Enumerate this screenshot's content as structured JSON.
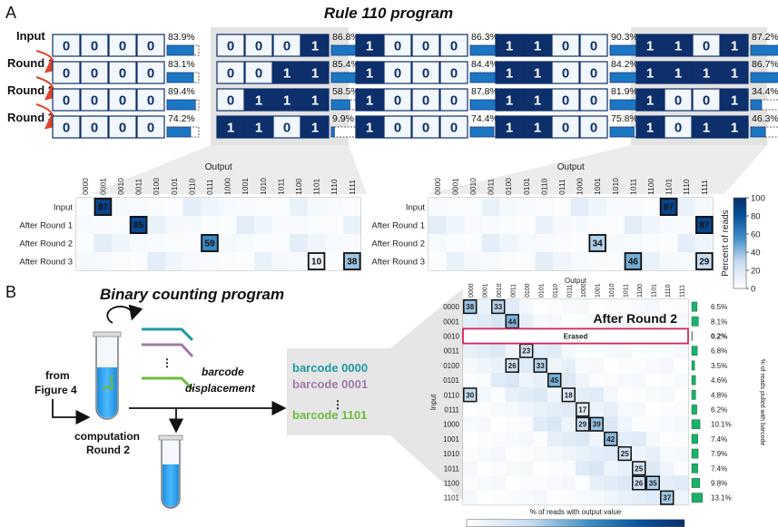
{
  "panel_a": {
    "letter": "A",
    "title": "Rule 110 program",
    "row_labels": [
      "Input",
      "Round 1",
      "Round 2",
      "Round 3"
    ],
    "programs": [
      {
        "rows": [
          {
            "bits": "0000",
            "pct": "83.9%",
            "v": 83.9
          },
          {
            "bits": "0000",
            "pct": "83.1%",
            "v": 83.1
          },
          {
            "bits": "0000",
            "pct": "89.4%",
            "v": 89.4
          },
          {
            "bits": "0000",
            "pct": "74.2%",
            "v": 74.2
          }
        ]
      },
      {
        "rows": [
          {
            "bits": "0001",
            "pct": "86.8%",
            "v": 86.8
          },
          {
            "bits": "0011",
            "pct": "85.4%",
            "v": 85.4
          },
          {
            "bits": "0111",
            "pct": "58.5%",
            "v": 58.5
          },
          {
            "bits": "1101",
            "pct": "9.9%",
            "v": 9.9
          }
        ]
      },
      {
        "rows": [
          {
            "bits": "1000",
            "pct": "86.3%",
            "v": 86.3
          },
          {
            "bits": "1000",
            "pct": "84.4%",
            "v": 84.4
          },
          {
            "bits": "1000",
            "pct": "87.8%",
            "v": 87.8
          },
          {
            "bits": "1000",
            "pct": "74.4%",
            "v": 74.4
          }
        ]
      },
      {
        "rows": [
          {
            "bits": "1100",
            "pct": "90.3%",
            "v": 90.3
          },
          {
            "bits": "1100",
            "pct": "84.2%",
            "v": 84.2
          },
          {
            "bits": "1100",
            "pct": "81.9%",
            "v": 81.9
          },
          {
            "bits": "1100",
            "pct": "75.8%",
            "v": 75.8
          }
        ]
      },
      {
        "rows": [
          {
            "bits": "1101",
            "pct": "87.2%",
            "v": 87.2
          },
          {
            "bits": "1111",
            "pct": "86.7%",
            "v": 86.7
          },
          {
            "bits": "1001",
            "pct": "34.4%",
            "v": 34.4
          },
          {
            "bits": "1011",
            "pct": "46.3%",
            "v": 46.3
          }
        ]
      }
    ],
    "heatmap_axis_title": "Output",
    "heatmap_row_labels": [
      "Input",
      "After Round 1",
      "After Round 2",
      "After Round 3"
    ],
    "heatmap_columns": [
      "0000",
      "0001",
      "0010",
      "0011",
      "0100",
      "0101",
      "0110",
      "0111",
      "1000",
      "1001",
      "1010",
      "1011",
      "1100",
      "1101",
      "1110",
      "1111"
    ],
    "heatmap_left_highlights": [
      {
        "row": 0,
        "col": 1,
        "value": "87",
        "v": 87
      },
      {
        "row": 1,
        "col": 3,
        "value": "85",
        "v": 85
      },
      {
        "row": 2,
        "col": 7,
        "value": "59",
        "v": 59
      },
      {
        "row": 3,
        "col": 13,
        "value": "10",
        "v": 10
      },
      {
        "row": 3,
        "col": 15,
        "value": "38",
        "v": 38
      }
    ],
    "heatmap_right_highlights": [
      {
        "row": 0,
        "col": 13,
        "value": "87",
        "v": 87
      },
      {
        "row": 1,
        "col": 15,
        "value": "87",
        "v": 87
      },
      {
        "row": 2,
        "col": 9,
        "value": "34",
        "v": 34
      },
      {
        "row": 3,
        "col": 11,
        "value": "46",
        "v": 46
      },
      {
        "row": 3,
        "col": 15,
        "value": "29",
        "v": 29
      }
    ],
    "colorbar_title": "Percent of reads",
    "colorbar_ticks": [
      "0",
      "20",
      "40",
      "60",
      "80",
      "100"
    ]
  },
  "panel_b": {
    "letter": "B",
    "title": "Binary counting program",
    "from_label_1": "from",
    "from_label_2": "Figure 4",
    "computation_label_1": "computation",
    "computation_label_2": "Round 2",
    "displacement_label_1": "barcode",
    "displacement_label_2": "displacement",
    "barcodes": [
      {
        "text": "barcode 0000",
        "color": "#1e9aa0"
      },
      {
        "text": "barcode 0001",
        "color": "#a07aa6"
      },
      {
        "text": "barcode 1101",
        "color": "#6cbb3c"
      }
    ],
    "heatmap_title": "After Round 2",
    "heatmap_top_axis": "Output",
    "heatmap_left_axis": "Input",
    "heatmap_bottom_axis": "% of reads with output value",
    "heatmap_right_axis": "% of reads pulled with barcode",
    "columns": [
      "0000",
      "0001",
      "0010",
      "0011",
      "0100",
      "0101",
      "0110",
      "0111",
      "1000",
      "1001",
      "1010",
      "1011",
      "1100",
      "1101",
      "1110",
      "1111"
    ],
    "rows": [
      {
        "label": "0000",
        "pct": "6.5%",
        "v": 6.5
      },
      {
        "label": "0001",
        "pct": "8.1%",
        "v": 8.1
      },
      {
        "label": "0010",
        "pct": "0.2%",
        "v": 0.2
      },
      {
        "label": "0011",
        "pct": "6.8%",
        "v": 6.8
      },
      {
        "label": "0100",
        "pct": "3.5%",
        "v": 3.5
      },
      {
        "label": "0101",
        "pct": "4.6%",
        "v": 4.6
      },
      {
        "label": "0110",
        "pct": "4.8%",
        "v": 4.8
      },
      {
        "label": "0111",
        "pct": "6.2%",
        "v": 6.2
      },
      {
        "label": "1000",
        "pct": "10.1%",
        "v": 10.1
      },
      {
        "label": "1001",
        "pct": "7.4%",
        "v": 7.4
      },
      {
        "label": "1010",
        "pct": "7.9%",
        "v": 7.9
      },
      {
        "label": "1011",
        "pct": "7.4%",
        "v": 7.4
      },
      {
        "label": "1100",
        "pct": "9.8%",
        "v": 9.8
      },
      {
        "label": "1101",
        "pct": "13.1%",
        "v": 13.1
      }
    ],
    "erased_label": "Erased",
    "erased_color": "#d6245b",
    "highlights": [
      {
        "row": 0,
        "col": 0,
        "value": "38",
        "v": 38
      },
      {
        "row": 0,
        "col": 2,
        "value": "33",
        "v": 33
      },
      {
        "row": 1,
        "col": 3,
        "value": "44",
        "v": 44
      },
      {
        "row": 3,
        "col": 4,
        "value": "23",
        "v": 23
      },
      {
        "row": 4,
        "col": 3,
        "value": "26",
        "v": 26
      },
      {
        "row": 4,
        "col": 5,
        "value": "33",
        "v": 33
      },
      {
        "row": 5,
        "col": 6,
        "value": "45",
        "v": 45
      },
      {
        "row": 6,
        "col": 7,
        "value": "18",
        "v": 18
      },
      {
        "row": 6,
        "col": 0,
        "value": "30",
        "v": 30
      },
      {
        "row": 7,
        "col": 8,
        "value": "17",
        "v": 17
      },
      {
        "row": 8,
        "col": 8,
        "value": "29",
        "v": 29
      },
      {
        "row": 8,
        "col": 9,
        "value": "39",
        "v": 39
      },
      {
        "row": 9,
        "col": 10,
        "value": "42",
        "v": 42
      },
      {
        "row": 10,
        "col": 11,
        "value": "25",
        "v": 25
      },
      {
        "row": 11,
        "col": 12,
        "value": "25",
        "v": 25
      },
      {
        "row": 12,
        "col": 12,
        "value": "26",
        "v": 26
      },
      {
        "row": 12,
        "col": 13,
        "value": "35",
        "v": 35
      },
      {
        "row": 13,
        "col": 14,
        "value": "37",
        "v": 37
      }
    ],
    "colorbar_ticks": [
      "0",
      "20",
      "40",
      "60",
      "80",
      "100"
    ]
  }
}
